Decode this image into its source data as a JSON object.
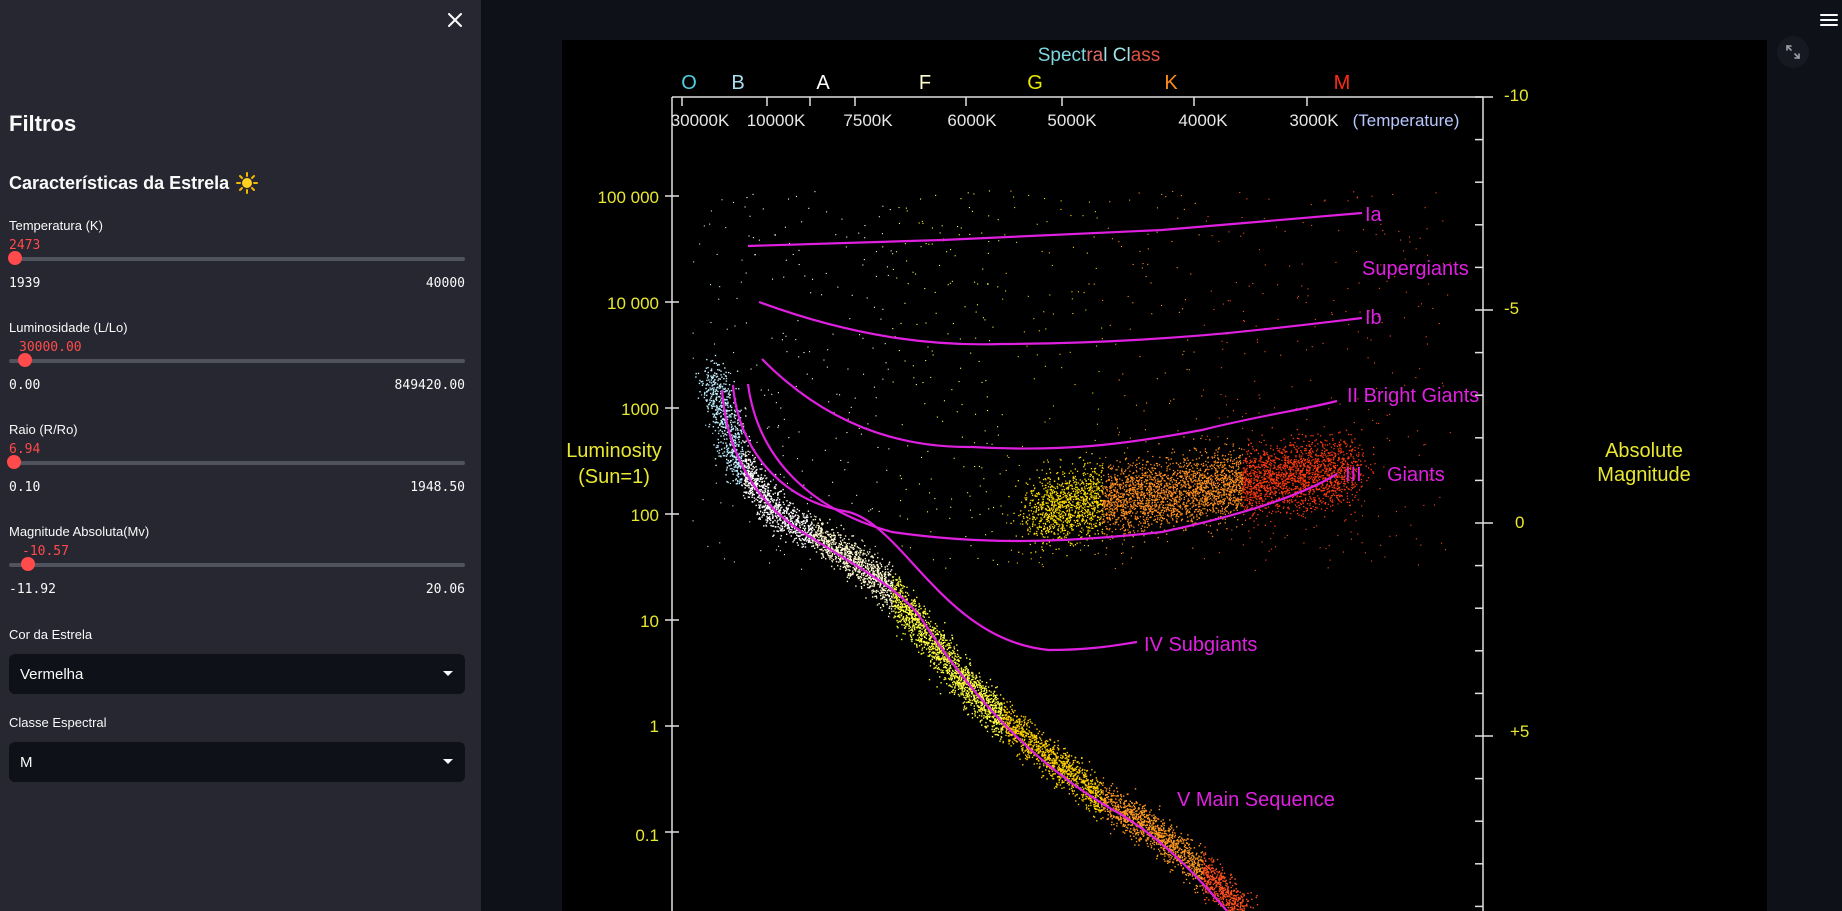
{
  "sidebar": {
    "title": "Filtros",
    "subtitle": "Características da Estrela",
    "sliders": [
      {
        "label": "Temperatura (K)",
        "value": "2473",
        "min": "1939",
        "max": "40000",
        "fraction": 0.014
      },
      {
        "label": "Luminosidade (L/Lo)",
        "value": "30000.00",
        "min": "0.00",
        "max": "849420.00",
        "fraction": 0.035
      },
      {
        "label": "Raio (R/Ro)",
        "value": "6.94",
        "min": "0.10",
        "max": "1948.50",
        "fraction": 0.004
      },
      {
        "label": "Magnitude Absoluta(Mv)",
        "value": "-10.57",
        "min": "-11.92",
        "max": "20.06",
        "fraction": 0.042
      }
    ],
    "selects": [
      {
        "label": "Cor da Estrela",
        "value": "Vermelha"
      },
      {
        "label": "Classe Espectral",
        "value": "M"
      }
    ]
  },
  "hr_diagram": {
    "title_parts": [
      "Spect",
      "ra",
      "l Cl",
      "ass"
    ],
    "title_colors": [
      "#7fd6e0",
      "#e07070",
      "#a0e0e8",
      "#e05040"
    ],
    "spectral_classes": [
      {
        "label": "O",
        "color": "#4fd0e0"
      },
      {
        "label": "B",
        "color": "#a8dff0"
      },
      {
        "label": "A",
        "color": "#ffffff"
      },
      {
        "label": "F",
        "color": "#ffffd0"
      },
      {
        "label": "G",
        "color": "#e8e800"
      },
      {
        "label": "K",
        "color": "#ff8c1a"
      },
      {
        "label": "M",
        "color": "#ff2a1a"
      }
    ],
    "temperature_ticks": [
      "30000K",
      "10000K",
      "7500K",
      "6000K",
      "5000K",
      "4000K",
      "3000K"
    ],
    "temperature_caption": "(Temperature)",
    "luminosity_ticks": [
      "100 000",
      "10 000",
      "1000",
      "100",
      "10",
      "1",
      "0.1"
    ],
    "luminosity_label_lines": [
      "Luminosity",
      "(Sun=1)"
    ],
    "magnitude_ticks": [
      "-10",
      "-5",
      "0",
      "+5"
    ],
    "magnitude_label_lines": [
      "Absolute",
      "Magnitude"
    ],
    "class_labels": {
      "ia": "Ia",
      "supergiants": "Supergiants",
      "ib": "Ib",
      "bright_giants": "II Bright Giants",
      "giants_numeral": "III",
      "giants": "Giants",
      "subgiants": "IV Subgiants",
      "main_sequence": "V  Main Sequence"
    },
    "axis_color": "#e8e830",
    "curve_color": "#e020e0"
  }
}
